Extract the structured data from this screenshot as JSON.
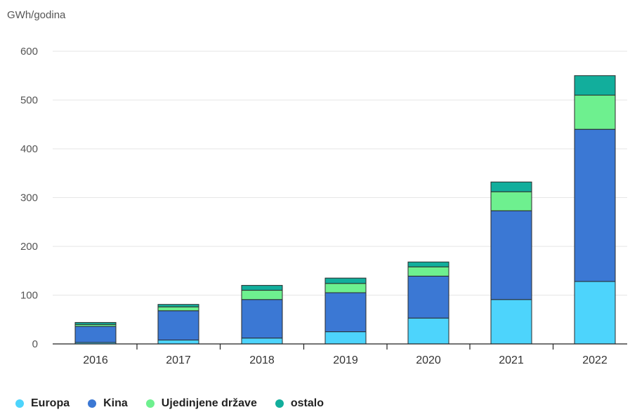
{
  "chart_data": {
    "type": "bar",
    "stacked": true,
    "ylabel": "GWh/godina",
    "xlabel": "",
    "title": "",
    "ylim": [
      0,
      600
    ],
    "yticks": [
      0,
      100,
      200,
      300,
      400,
      500,
      600
    ],
    "grid": true,
    "legend_position": "bottom-left",
    "categories": [
      "2016",
      "2017",
      "2018",
      "2019",
      "2020",
      "2021",
      "2022"
    ],
    "series": [
      {
        "name": "Europa",
        "color": "#4dd4fc",
        "values": [
          3,
          8,
          12,
          25,
          53,
          91,
          128
        ]
      },
      {
        "name": "Kina",
        "color": "#3b78d4",
        "values": [
          33,
          60,
          79,
          80,
          86,
          182,
          312
        ]
      },
      {
        "name": "Ujedinjene države",
        "color": "#6ef08f",
        "values": [
          4,
          8,
          19,
          19,
          19,
          39,
          70
        ]
      },
      {
        "name": "ostalo",
        "color": "#12ae9c",
        "values": [
          4,
          5,
          10,
          11,
          10,
          20,
          40
        ]
      }
    ]
  }
}
